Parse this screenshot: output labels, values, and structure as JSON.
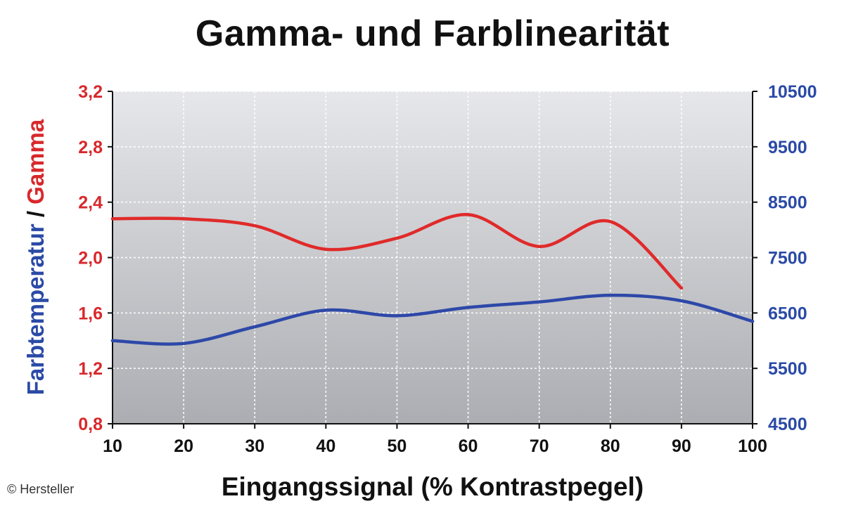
{
  "chart_data": {
    "type": "line",
    "title": "Gamma- und Farblinearität",
    "xlabel": "Eingangssignal (% Kontrastpegel)",
    "ylabel_left_part1": "Farbtemperatur",
    "ylabel_separator": " / ",
    "ylabel_left_part2": "Gamma",
    "x": [
      10,
      20,
      30,
      40,
      50,
      60,
      70,
      80,
      90,
      100
    ],
    "xlim": [
      10,
      100
    ],
    "y_left_lim": [
      0.8,
      3.2
    ],
    "y_right_lim": [
      4500,
      10500
    ],
    "y_left_ticks": [
      "0,8",
      "1,2",
      "1,6",
      "2,0",
      "2,4",
      "2,8",
      "3,2"
    ],
    "y_right_ticks": [
      "4500",
      "5500",
      "6500",
      "7500",
      "8500",
      "9500",
      "10500"
    ],
    "x_ticks": [
      "10",
      "20",
      "30",
      "40",
      "50",
      "60",
      "70",
      "80",
      "90",
      "100"
    ],
    "grid": true,
    "series": [
      {
        "axis": "left",
        "color": "#e02a2a",
        "x": [
          10,
          20,
          30,
          40,
          50,
          60,
          70,
          80,
          90
        ],
        "values": [
          2.28,
          2.28,
          2.23,
          2.06,
          2.14,
          2.31,
          2.08,
          2.26,
          1.78
        ]
      },
      {
        "axis": "right",
        "color": "#2d48a8",
        "x": [
          10,
          20,
          30,
          40,
          50,
          60,
          70,
          80,
          90,
          100
        ],
        "values": [
          6000,
          5950,
          6250,
          6550,
          6450,
          6600,
          6700,
          6820,
          6720,
          6350
        ]
      }
    ]
  },
  "credit": "© Hersteller",
  "colors": {
    "left_axis": "#d8282c",
    "right_axis": "#2a4aa6"
  }
}
